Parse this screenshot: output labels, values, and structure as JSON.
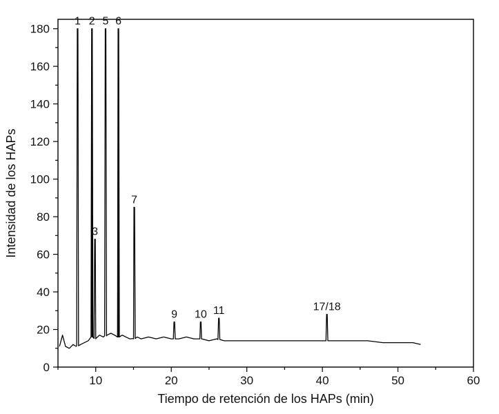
{
  "chart_data": {
    "type": "line",
    "title": "",
    "xlabel": "Tiempo de retención de los HAPs (min)",
    "ylabel": "Intensidad de los HAPs",
    "xlim": [
      5,
      60
    ],
    "ylim": [
      0,
      185
    ],
    "xticks": [
      10,
      20,
      30,
      40,
      50,
      60
    ],
    "yticks": [
      0,
      20,
      40,
      60,
      80,
      100,
      120,
      140,
      160,
      180
    ],
    "grid": false,
    "legend": "none",
    "line_color": "#000000",
    "series": [
      {
        "x": [
          5.2,
          5.6,
          6.0,
          6.5,
          7.0,
          7.4,
          8.0,
          8.5,
          9.0,
          9.5,
          10.0,
          10.5,
          11.0,
          11.5,
          12.0,
          12.5,
          13.0,
          13.5,
          14.0,
          14.5,
          15.0,
          15.5,
          16.0,
          17.0,
          18.0,
          19.0,
          20.0,
          21.0,
          22.0,
          23.0,
          24.0,
          25.0,
          26.0,
          27.0,
          28.0,
          29.0,
          30.0,
          32.0,
          34.0,
          36.0,
          38.0,
          40.0,
          42.0,
          44.0,
          46.0,
          48.0,
          50.0,
          52.0,
          53.0
        ],
        "y": [
          11,
          17,
          11,
          10,
          12,
          11,
          12,
          13,
          14,
          16,
          15,
          17,
          16,
          17,
          18,
          17,
          16,
          17,
          16,
          15,
          15,
          16,
          15,
          16,
          15,
          16,
          15,
          15,
          16,
          15,
          15,
          14,
          15,
          14,
          14,
          14,
          14,
          14,
          14,
          14,
          14,
          14,
          14,
          14,
          14,
          13,
          13,
          13,
          12
        ]
      }
    ],
    "peaks": [
      {
        "label": "1",
        "x": 7.6,
        "y": 180
      },
      {
        "label": "2",
        "x": 9.5,
        "y": 180
      },
      {
        "label": "3",
        "x": 9.9,
        "y": 68
      },
      {
        "label": "5",
        "x": 11.3,
        "y": 180
      },
      {
        "label": "6",
        "x": 13.0,
        "y": 180
      },
      {
        "label": "7",
        "x": 15.1,
        "y": 85
      },
      {
        "label": "9",
        "x": 20.4,
        "y": 24
      },
      {
        "label": "10",
        "x": 23.9,
        "y": 24
      },
      {
        "label": "11",
        "x": 26.3,
        "y": 26
      },
      {
        "label": "17/18",
        "x": 40.6,
        "y": 28
      }
    ]
  }
}
